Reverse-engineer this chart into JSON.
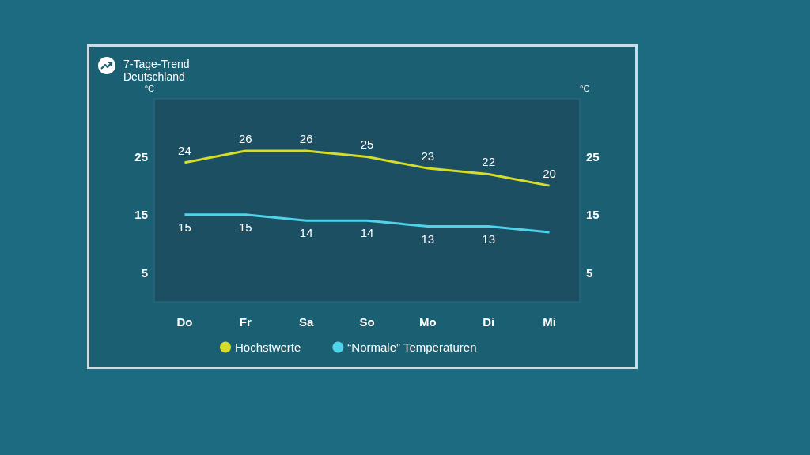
{
  "chart_data": {
    "type": "line",
    "title": "7-Tage-Trend",
    "subtitle": "Deutschland",
    "ylabel": "°C",
    "y2label": "°C",
    "categories": [
      "Do",
      "Fr",
      "Sa",
      "So",
      "Mo",
      "Di",
      "Mi"
    ],
    "series": [
      {
        "name": "Höchstwerte",
        "color": "#d6dc2a",
        "values": [
          24,
          26,
          26,
          25,
          23,
          22,
          20
        ],
        "value_labels": [
          "24",
          "26",
          "26",
          "25",
          "23",
          "22",
          "20"
        ]
      },
      {
        "name": "“Normale” Temperaturen",
        "color": "#4fd3ea",
        "values": [
          15,
          15,
          14,
          14,
          13,
          13,
          12
        ],
        "value_labels": [
          "15",
          "15",
          "14",
          "14",
          "13",
          "13",
          null
        ]
      }
    ],
    "ylim": [
      0,
      35
    ],
    "yticks": [
      5,
      15,
      25
    ],
    "y2lim": [
      0,
      35
    ],
    "y2ticks": [
      5,
      15,
      25
    ],
    "legend": "bottom",
    "marker": "none",
    "line_style": "solid"
  }
}
